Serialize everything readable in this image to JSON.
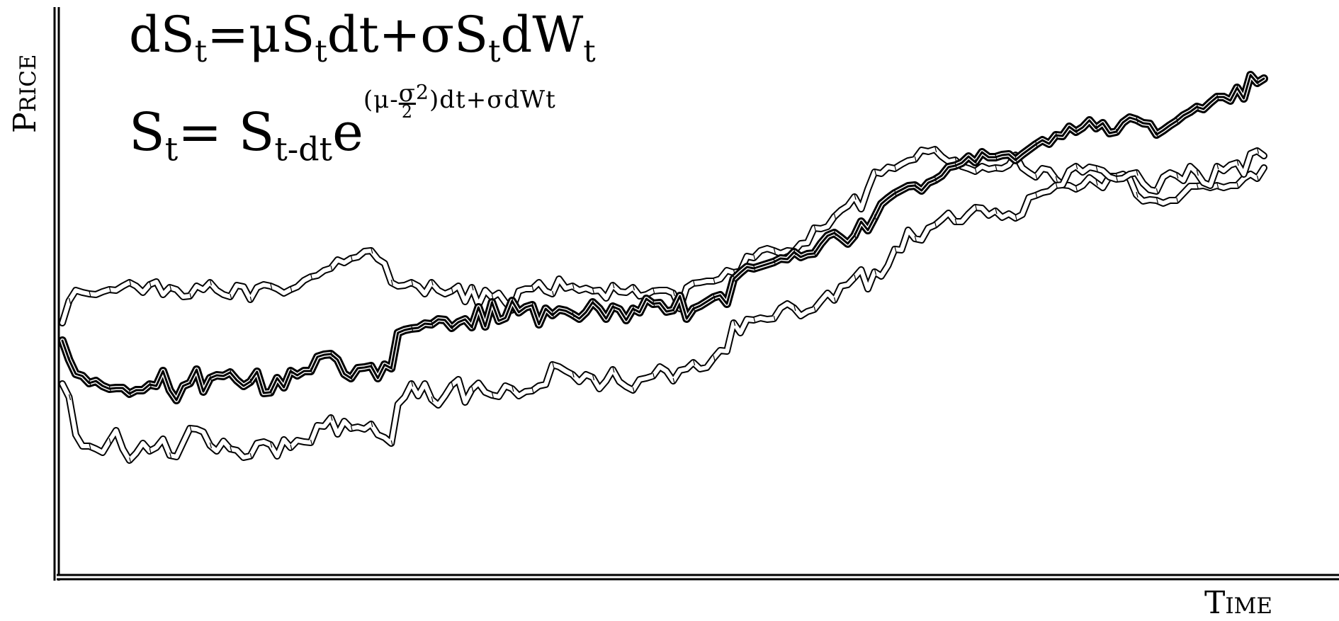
{
  "chart_data": {
    "type": "line",
    "xlabel": "Time",
    "ylabel": "Price",
    "equations": {
      "sde": [
        "dS",
        "t",
        "=μS",
        "t",
        "dt+σS",
        "t",
        "dW",
        "t"
      ],
      "solution": {
        "lhs": "S",
        "lhs_sub": "t",
        "eq": "= ",
        "base": "S",
        "base_sub": "t-dt",
        "e": "e",
        "exp_pre": "(μ-",
        "exp_num": "σ",
        "exp_sq": "2",
        "exp_den": "2",
        "exp_post": ")dt+σdWt"
      }
    },
    "x": [
      0,
      1,
      2,
      3,
      4,
      5,
      6,
      7,
      8,
      9,
      10,
      11,
      12,
      13,
      14,
      15,
      16,
      17,
      18,
      19,
      20,
      21,
      22,
      23,
      24,
      25,
      26,
      27,
      28,
      29,
      30,
      31,
      32,
      33,
      34,
      35,
      36,
      37,
      38,
      39,
      40,
      41,
      42,
      43,
      44,
      45,
      46,
      47,
      48,
      49,
      50,
      51,
      52,
      53,
      54,
      55,
      56,
      57,
      58,
      59,
      60,
      61,
      62,
      63,
      64,
      65,
      66,
      67,
      68,
      69,
      70,
      71,
      72,
      73,
      74,
      75,
      76,
      77,
      78,
      79,
      80,
      81,
      82,
      83,
      84,
      85,
      86,
      87,
      88,
      89,
      90,
      91,
      92,
      93,
      94,
      95,
      96,
      97,
      98,
      99,
      100,
      101,
      102,
      103,
      104,
      105,
      106,
      107,
      108,
      109,
      110,
      111,
      112,
      113,
      114,
      115,
      116,
      117,
      118,
      119,
      120,
      121,
      122,
      123,
      124,
      125,
      126,
      127,
      128,
      129,
      130,
      131,
      132,
      133,
      134,
      135,
      136,
      137,
      138,
      139,
      140,
      141,
      142,
      143,
      144,
      145,
      146,
      147,
      148,
      149,
      150,
      151,
      152,
      153,
      154,
      155,
      156,
      157,
      158,
      159,
      160,
      161,
      162,
      163,
      164,
      165,
      166,
      167,
      168,
      169,
      170,
      171,
      172,
      173,
      174,
      175,
      176,
      177,
      178,
      179
    ],
    "series": [
      {
        "role": "upper",
        "values": [
          456,
          425,
          410,
          413,
          415,
          416,
          412,
          409,
          410,
          404,
          399,
          404,
          413,
          402,
          398,
          416,
          406,
          409,
          419,
          418,
          404,
          409,
          399,
          410,
          416,
          419,
          403,
          405,
          423,
          406,
          402,
          404,
          408,
          414,
          409,
          405,
          396,
          391,
          389,
          382,
          379,
          367,
          371,
          365,
          363,
          355,
          354,
          366,
          372,
          399,
          404,
          403,
          399,
          404,
          415,
          399,
          410,
          415,
          411,
          404,
          426,
          406,
          431,
          410,
          420,
          414,
          427,
          438,
          411,
          408,
          408,
          399,
          411,
          415,
          394,
          407,
          404,
          410,
          407,
          411,
          410,
          421,
          403,
          412,
          413,
          406,
          418,
          416,
          411,
          410,
          410,
          414,
          436,
          406,
          400,
          399,
          397,
          397,
          394,
          382,
          385,
          383,
          362,
          364,
          354,
          351,
          354,
          358,
          354,
          355,
          344,
          343,
          322,
          323,
          320,
          306,
          297,
          291,
          278,
          295,
          267,
          243,
          245,
          236,
          238,
          232,
          227,
          225,
          212,
          214,
          211,
          221,
          228,
          226,
          235,
          238,
          242,
          235,
          239,
          237,
          238,
          233,
          219,
          237,
          244,
          250,
          238,
          240,
          253,
          261,
          262,
          267,
          262,
          251,
          258,
          265,
          249,
          249,
          246,
          252,
          275,
          284,
          282,
          283,
          287,
          283,
          283,
          273,
          263,
          263,
          262,
          265,
          262,
          265,
          262,
          262,
          252,
          246,
          252,
          237
        ]
      },
      {
        "role": "main",
        "values": [
          481,
          508,
          528,
          531,
          541,
          538,
          545,
          549,
          548,
          548,
          556,
          551,
          551,
          543,
          545,
          524,
          551,
          565,
          545,
          541,
          522,
          553,
          534,
          530,
          531,
          526,
          537,
          545,
          539,
          525,
          555,
          554,
          534,
          547,
          524,
          530,
          524,
          524,
          504,
          501,
          500,
          508,
          528,
          534,
          520,
          519,
          517,
          534,
          515,
          520,
          470,
          466,
          464,
          463,
          457,
          458,
          451,
          452,
          463,
          455,
          451,
          462,
          434,
          461,
          427,
          453,
          449,
          425,
          441,
          434,
          431,
          458,
          436,
          445,
          437,
          439,
          444,
          450,
          441,
          427,
          436,
          450,
          433,
          437,
          452,
          436,
          441,
          422,
          429,
          428,
          440,
          438,
          418,
          450,
          436,
          432,
          426,
          420,
          417,
          429,
          394,
          385,
          377,
          379,
          376,
          373,
          370,
          365,
          366,
          356,
          363,
          359,
          358,
          344,
          333,
          329,
          336,
          344,
          333,
          313,
          325,
          307,
          288,
          280,
          273,
          268,
          263,
          262,
          269,
          258,
          254,
          248,
          236,
          234,
          230,
          221,
          229,
          215,
          222,
          222,
          219,
          218,
          226,
          218,
          211,
          204,
          198,
          203,
          191,
          192,
          179,
          186,
          180,
          170,
          181,
          174,
          188,
          186,
          173,
          166,
          169,
          174,
          175,
          190,
          184,
          177,
          171,
          163,
          158,
          151,
          154,
          145,
          137,
          137,
          142,
          124,
          139,
          106,
          117,
          111
        ]
      },
      {
        "role": "lower",
        "values": [
          542,
          561,
          614,
          630,
          630,
          634,
          639,
          623,
          608,
          634,
          650,
          640,
          626,
          637,
          632,
          620,
          643,
          645,
          625,
          605,
          606,
          610,
          629,
          637,
          623,
          634,
          636,
          646,
          644,
          626,
          624,
          628,
          644,
          621,
          632,
          622,
          624,
          625,
          601,
          602,
          590,
          613,
          595,
          605,
          603,
          606,
          599,
          614,
          618,
          626,
          571,
          561,
          542,
          559,
          542,
          564,
          572,
          559,
          544,
          536,
          568,
          550,
          541,
          554,
          558,
          560,
          545,
          549,
          559,
          553,
          552,
          545,
          543,
          515,
          518,
          524,
          529,
          539,
          529,
          533,
          549,
          538,
          522,
          539,
          546,
          551,
          536,
          534,
          531,
          518,
          524,
          538,
          523,
          521,
          512,
          521,
          519,
          506,
          495,
          496,
          456,
          470,
          451,
          452,
          449,
          451,
          450,
          435,
          429,
          435,
          446,
          440,
          437,
          425,
          414,
          424,
          404,
          402,
          392,
          381,
          408,
          384,
          390,
          375,
          352,
          353,
          325,
          337,
          339,
          322,
          318,
          310,
          301,
          313,
          313,
          302,
          293,
          294,
          304,
          298,
          307,
          302,
          308,
          303,
          279,
          276,
          272,
          270,
          262,
          261,
          241,
          235,
          243,
          236,
          238,
          241,
          250,
          253,
          252,
          246,
          244,
          259,
          268,
          270,
          250,
          244,
          248,
          255,
          235,
          244,
          258,
          262,
          235,
          241,
          233,
          230,
          246,
          217,
          213,
          220
        ]
      }
    ]
  }
}
